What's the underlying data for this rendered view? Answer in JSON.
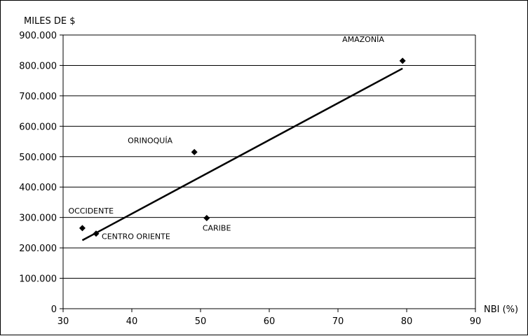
{
  "chart_data": {
    "type": "scatter",
    "ylabel": "MILES DE $",
    "xlabel": "NBI (%)",
    "xlim": [
      30,
      90
    ],
    "ylim": [
      0,
      900000
    ],
    "x_ticks": [
      30,
      40,
      50,
      60,
      70,
      80,
      90
    ],
    "x_tick_labels": [
      "30",
      "40",
      "50",
      "60",
      "70",
      "80",
      "90"
    ],
    "y_ticks": [
      0,
      100000,
      200000,
      300000,
      400000,
      500000,
      600000,
      700000,
      800000,
      900000
    ],
    "y_tick_labels": [
      "0",
      "100.000",
      "200.000",
      "300.000",
      "400.000",
      "500.000",
      "600.000",
      "700.000",
      "800.000",
      "900.000"
    ],
    "grid": "horizontal",
    "points": [
      {
        "label": "AMAZONÍA",
        "x": 79.4,
        "y": 815000
      },
      {
        "label": "ORINOQUÍA",
        "x": 49.1,
        "y": 515000
      },
      {
        "label": "CARIBE",
        "x": 50.9,
        "y": 298000
      },
      {
        "label": "OCCIDENTE",
        "x": 32.8,
        "y": 265000
      },
      {
        "label": "CENTRO ORIENTE",
        "x": 34.8,
        "y": 247000
      }
    ],
    "trendline": {
      "x": [
        32.8,
        79.4
      ],
      "y": [
        225000,
        790000
      ]
    },
    "colors": {
      "marker": "#000000",
      "trendline": "#000000",
      "grid": "#000000"
    }
  }
}
